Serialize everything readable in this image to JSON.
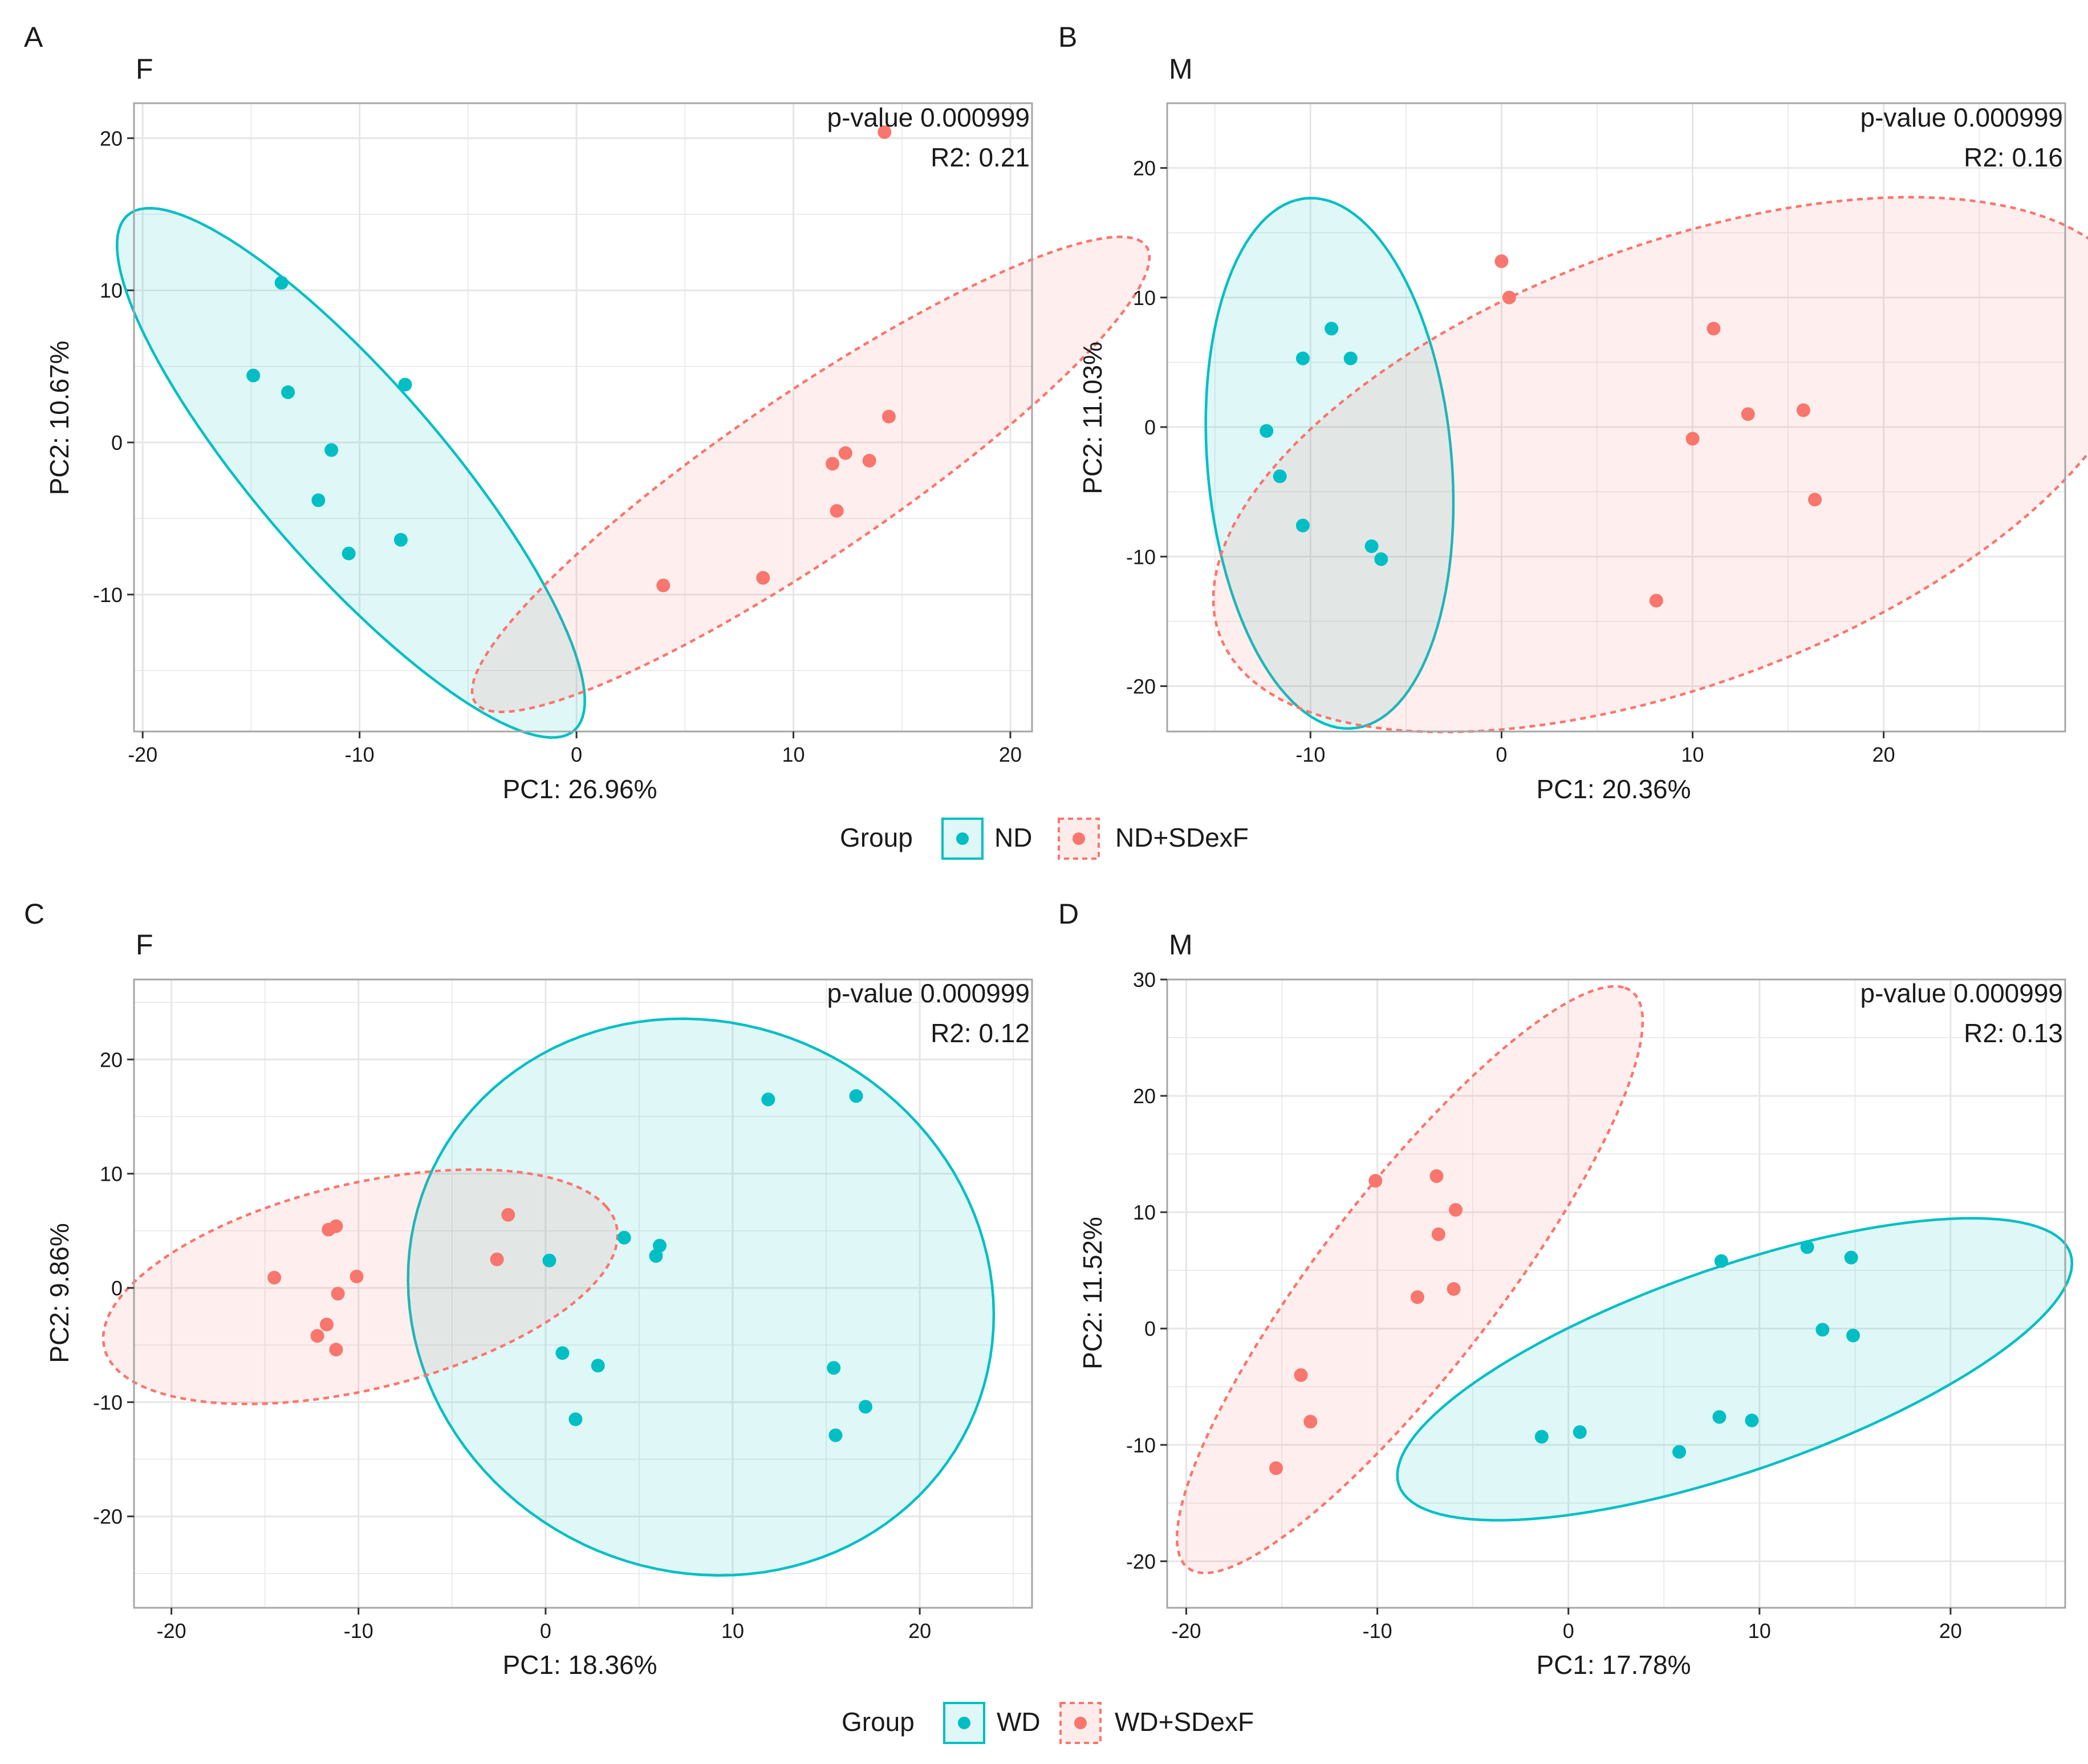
{
  "figure": {
    "colors": {
      "ND": "#00bfc4",
      "treated": "#f8766d",
      "grid": "#e6e6e6",
      "frame": "#a6a6a6"
    }
  },
  "legends": [
    {
      "title": "Group",
      "items": [
        "ND",
        "ND+SDexF"
      ]
    },
    {
      "title": "Group",
      "items": [
        "WD",
        "WD+SDexF"
      ]
    }
  ],
  "chart_data": [
    {
      "type": "scatter",
      "panel": "A",
      "title": "F",
      "xlabel": "PC1: 26.96%",
      "ylabel": "PC2: 10.67%",
      "xlim": [
        -20.4,
        21
      ],
      "ylim": [
        -19,
        22.3
      ],
      "xticks": [
        -20,
        -10,
        0,
        10,
        20
      ],
      "yticks": [
        -10,
        0,
        10,
        20
      ],
      "annotation": {
        "pvalue": "p-value 0.000999",
        "r2": "R2: 0.21"
      },
      "series": [
        {
          "name": "ND",
          "color": "#00bfc4",
          "line": "solid",
          "points": [
            [
              -13.6,
              10.5
            ],
            [
              -14.9,
              4.4
            ],
            [
              -13.3,
              3.3
            ],
            [
              -11.3,
              -0.5
            ],
            [
              -7.9,
              3.8
            ],
            [
              -11.9,
              -3.8
            ],
            [
              -10.5,
              -7.3
            ],
            [
              -8.1,
              -6.4
            ]
          ],
          "ellipse": {
            "cx": -10.4,
            "cy": -2.0,
            "rx": 19.9,
            "ry": 4.8,
            "angle": -60
          }
        },
        {
          "name": "ND+SDexF",
          "color": "#f8766d",
          "line": "dashed",
          "points": [
            [
              14.2,
              20.4
            ],
            [
              14.4,
              1.7
            ],
            [
              12.4,
              -0.7
            ],
            [
              11.8,
              -1.4
            ],
            [
              13.5,
              -1.2
            ],
            [
              12.0,
              -4.5
            ],
            [
              8.6,
              -8.9
            ],
            [
              4.0,
              -9.4
            ]
          ],
          "ellipse": {
            "cx": 10.8,
            "cy": -2.1,
            "rx": 21.6,
            "ry": 4.6,
            "angle": 45
          }
        }
      ]
    },
    {
      "type": "scatter",
      "panel": "B",
      "title": "M",
      "xlabel": "PC1: 20.36%",
      "ylabel": "PC2: 11.03%",
      "xlim": [
        -17.5,
        29.5
      ],
      "ylim": [
        -23.5,
        25
      ],
      "xticks": [
        -10,
        0,
        10,
        20
      ],
      "yticks": [
        -20,
        -10,
        0,
        10,
        20
      ],
      "annotation": {
        "pvalue": "p-value 0.000999",
        "r2": "R2: 0.16"
      },
      "series": [
        {
          "name": "ND",
          "color": "#00bfc4",
          "line": "solid",
          "points": [
            [
              -8.9,
              7.6
            ],
            [
              -10.4,
              5.3
            ],
            [
              -7.9,
              5.3
            ],
            [
              -12.3,
              -0.3
            ],
            [
              -11.6,
              -3.8
            ],
            [
              -10.4,
              -7.6
            ],
            [
              -6.8,
              -9.2
            ],
            [
              -6.3,
              -10.2
            ]
          ],
          "ellipse": {
            "cx": -9.0,
            "cy": -2.8,
            "rx": 20.5,
            "ry": 6.4,
            "angle": -87
          }
        },
        {
          "name": "ND+SDexF",
          "color": "#f8766d",
          "line": "dashed",
          "points": [
            [
              0,
              12.8
            ],
            [
              0.4,
              10.0
            ],
            [
              11.1,
              7.6
            ],
            [
              10.0,
              -0.9
            ],
            [
              12.9,
              1.0
            ],
            [
              15.8,
              1.3
            ],
            [
              16.4,
              -5.6
            ],
            [
              8.1,
              -13.4
            ]
          ],
          "ellipse": {
            "cx": 9.2,
            "cy": -2.9,
            "rx": 27.8,
            "ry": 15.6,
            "angle": 36
          }
        }
      ]
    },
    {
      "type": "scatter",
      "panel": "C",
      "title": "F",
      "xlabel": "PC1: 18.36%",
      "ylabel": "PC2: 9.86%",
      "xlim": [
        -22,
        26
      ],
      "ylim": [
        -28,
        27
      ],
      "xticks": [
        -20,
        -10,
        0,
        10,
        20
      ],
      "yticks": [
        -20,
        -10,
        0,
        10,
        20
      ],
      "annotation": {
        "pvalue": "p-value 0.000999",
        "r2": "R2: 0.12"
      },
      "series": [
        {
          "name": "WD",
          "color": "#00bfc4",
          "line": "solid",
          "points": [
            [
              11.9,
              16.5
            ],
            [
              16.6,
              16.8
            ],
            [
              4.2,
              4.4
            ],
            [
              6.1,
              3.7
            ],
            [
              5.9,
              2.8
            ],
            [
              0.2,
              2.4
            ],
            [
              0.9,
              -5.7
            ],
            [
              2.8,
              -6.8
            ],
            [
              15.4,
              -7.0
            ],
            [
              17.1,
              -10.4
            ],
            [
              1.6,
              -11.5
            ],
            [
              15.5,
              -12.9
            ]
          ],
          "ellipse": {
            "cx": 8.3,
            "cy": -0.8,
            "rx": 24.4,
            "ry": 15.6,
            "angle": -86
          }
        },
        {
          "name": "WD+SDexF",
          "color": "#f8766d",
          "line": "dashed",
          "points": [
            [
              -2.0,
              6.4
            ],
            [
              -2.6,
              2.5
            ],
            [
              -11.2,
              5.4
            ],
            [
              -11.6,
              5.1
            ],
            [
              -10.1,
              1.0
            ],
            [
              -14.5,
              0.9
            ],
            [
              -11.1,
              -0.5
            ],
            [
              -11.7,
              -3.2
            ],
            [
              -12.2,
              -4.2
            ],
            [
              -11.2,
              -5.4
            ]
          ],
          "ellipse": {
            "cx": -9.9,
            "cy": 0.1,
            "rx": 14.9,
            "ry": 8.5,
            "angle": 28
          }
        }
      ]
    },
    {
      "type": "scatter",
      "panel": "D",
      "title": "M",
      "xlabel": "PC1: 17.78%",
      "ylabel": "PC2: 11.52%",
      "xlim": [
        -21,
        26
      ],
      "ylim": [
        -24,
        30
      ],
      "xticks": [
        -20,
        -10,
        0,
        10,
        20
      ],
      "yticks": [
        -20,
        -10,
        0,
        10,
        20,
        30
      ],
      "annotation": {
        "pvalue": "p-value 0.000999",
        "r2": "R2: 0.13"
      },
      "series": [
        {
          "name": "WD",
          "color": "#00bfc4",
          "line": "solid",
          "points": [
            [
              8.0,
              5.8
            ],
            [
              12.5,
              7.0
            ],
            [
              14.8,
              6.1
            ],
            [
              13.3,
              -0.1
            ],
            [
              14.9,
              -0.6
            ],
            [
              -1.4,
              -9.3
            ],
            [
              0.6,
              -8.9
            ],
            [
              7.9,
              -7.6
            ],
            [
              9.6,
              -7.9
            ],
            [
              5.8,
              -10.6
            ]
          ],
          "ellipse": {
            "cx": 8.7,
            "cy": -3.5,
            "rx": 20.4,
            "ry": 8.0,
            "angle": 33
          }
        },
        {
          "name": "WD+SDexF",
          "color": "#f8766d",
          "line": "dashed",
          "points": [
            [
              -10.1,
              12.7
            ],
            [
              -6.9,
              13.1
            ],
            [
              -5.9,
              10.2
            ],
            [
              -6.8,
              8.1
            ],
            [
              -7.9,
              2.7
            ],
            [
              -6.0,
              3.4
            ],
            [
              -14.0,
              -4.0
            ],
            [
              -13.5,
              -8.0
            ],
            [
              -15.3,
              -12.0
            ]
          ],
          "ellipse": {
            "cx": -8.3,
            "cy": 4.2,
            "rx": 27.5,
            "ry": 5.3,
            "angle": 66
          }
        }
      ]
    }
  ]
}
